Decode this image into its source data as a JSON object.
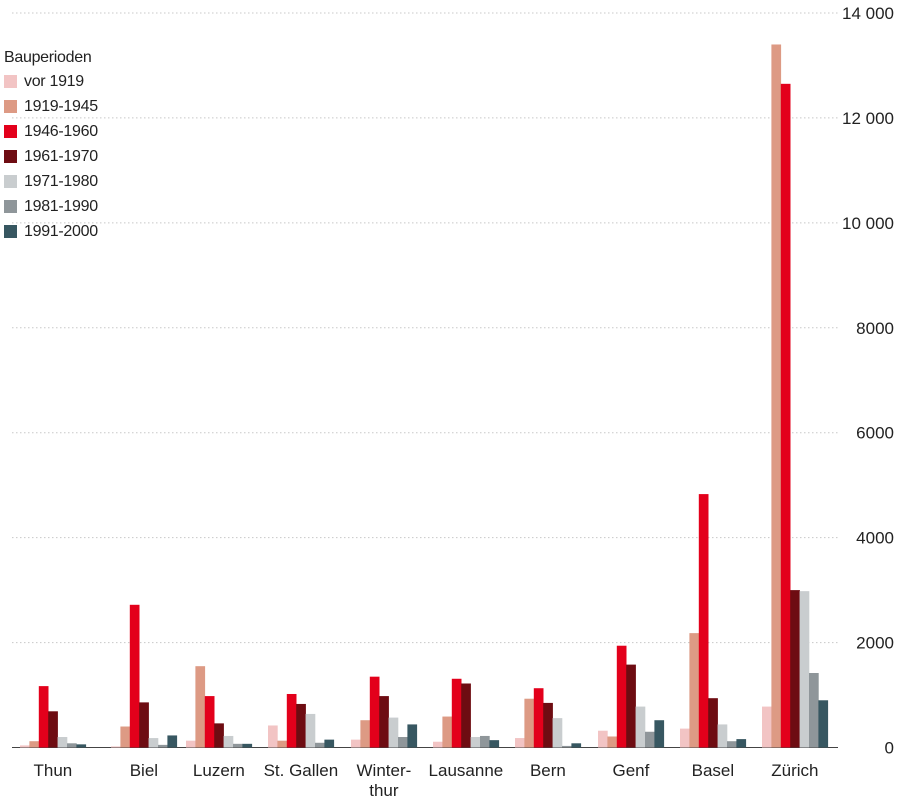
{
  "chart_data": {
    "type": "bar",
    "title": "",
    "xlabel": "",
    "ylabel": "",
    "ylim": [
      0,
      14000
    ],
    "yticks": [
      0,
      2000,
      4000,
      6000,
      8000,
      10000,
      12000,
      14000
    ],
    "ytick_labels": [
      "0",
      "2000",
      "4000",
      "6000",
      "8000",
      "10 000",
      "12 000",
      "14 000"
    ],
    "grid": "horizontal dotted",
    "yaxis_position": "right",
    "legend_position": "top-left",
    "legend_title": "Bauperioden",
    "categories": [
      [
        "Thun"
      ],
      [
        "Biel"
      ],
      [
        "Luzern"
      ],
      [
        "St. Gallen"
      ],
      [
        "Winter-",
        "thur"
      ],
      [
        "Lausanne"
      ],
      [
        "Bern"
      ],
      [
        "Genf"
      ],
      [
        "Basel"
      ],
      [
        "Zürich"
      ]
    ],
    "series": [
      {
        "name": "vor 1919",
        "color": "#f2c4c4",
        "values": [
          40,
          20,
          130,
          420,
          150,
          110,
          180,
          320,
          360,
          780
        ]
      },
      {
        "name": "1919-1945",
        "color": "#dd9a84",
        "values": [
          120,
          400,
          1550,
          130,
          520,
          590,
          930,
          210,
          2180,
          13400
        ]
      },
      {
        "name": "1946-1960",
        "color": "#e3001b",
        "values": [
          1170,
          2720,
          980,
          1020,
          1350,
          1310,
          1130,
          1940,
          4830,
          12650
        ]
      },
      {
        "name": "1961-1970",
        "color": "#6e0c12",
        "values": [
          690,
          860,
          460,
          830,
          980,
          1220,
          850,
          1580,
          940,
          3000
        ]
      },
      {
        "name": "1971-1980",
        "color": "#c9cdcf",
        "values": [
          200,
          180,
          220,
          640,
          570,
          200,
          560,
          780,
          440,
          2980
        ]
      },
      {
        "name": "1981-1990",
        "color": "#8f969a",
        "values": [
          80,
          50,
          70,
          90,
          200,
          220,
          30,
          300,
          120,
          1420
        ]
      },
      {
        "name": "1991-2000",
        "color": "#375761",
        "values": [
          60,
          230,
          70,
          150,
          440,
          140,
          80,
          520,
          160,
          900
        ]
      }
    ]
  }
}
